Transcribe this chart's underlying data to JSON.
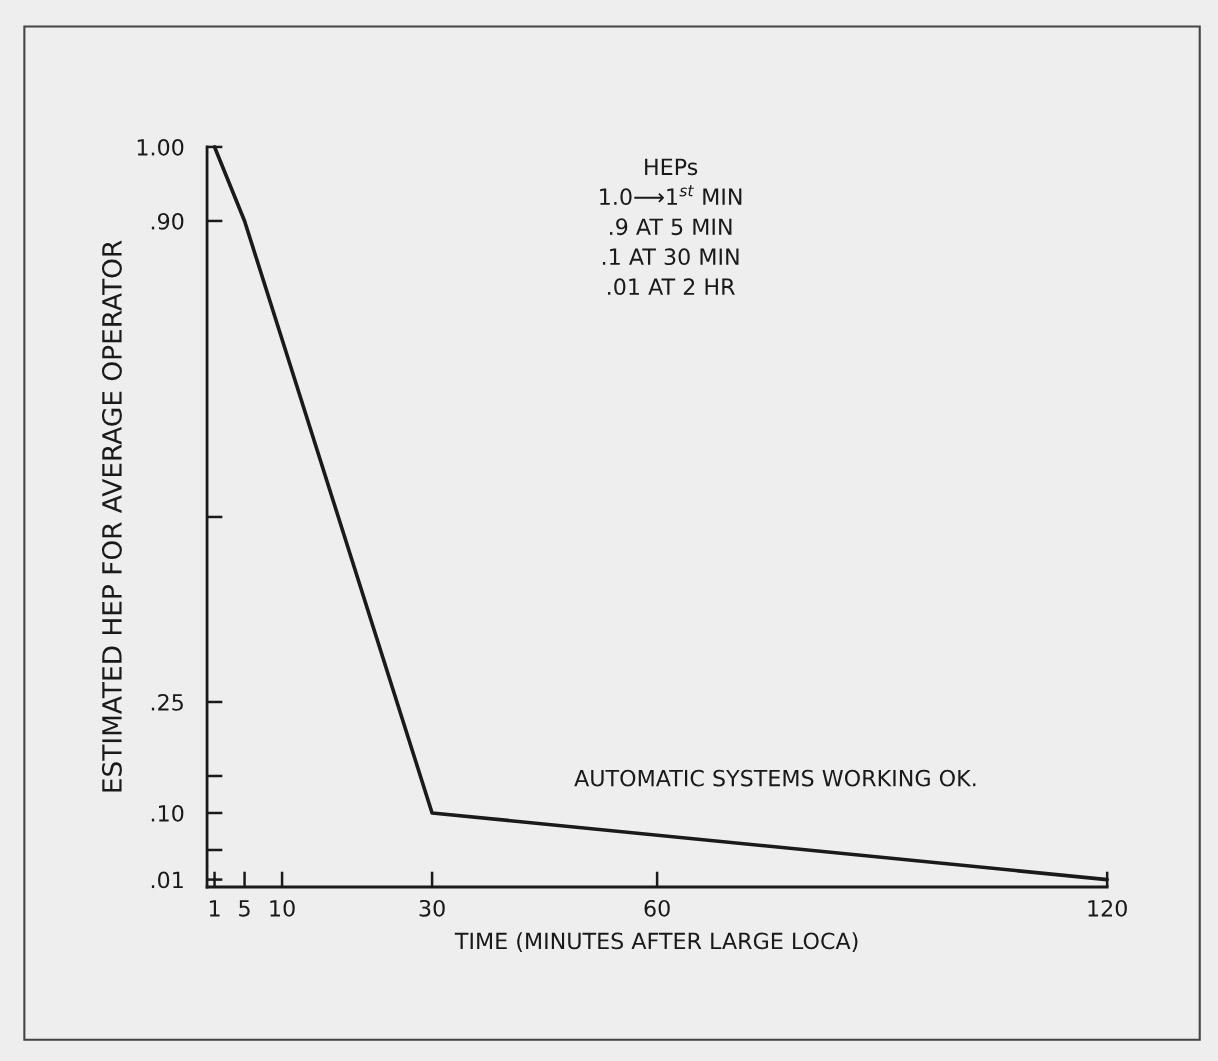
{
  "chart_data": {
    "type": "line",
    "xlabel": "TIME (MINUTES AFTER LARGE LOCA)",
    "ylabel": "ESTIMATED HEP FOR AVERAGE OPERATOR",
    "x": [
      1,
      5,
      30,
      120
    ],
    "values": [
      1.0,
      0.9,
      0.1,
      0.01
    ],
    "color": "#1a1a1a",
    "xlim": [
      0,
      120
    ],
    "xticks": [
      1,
      5,
      10,
      30,
      60,
      120
    ],
    "ylim": [
      0,
      1.0
    ],
    "yticks": [
      {
        "value": 1.0,
        "label": "1.00"
      },
      {
        "value": 0.9,
        "label": ".90"
      },
      {
        "value": 0.5,
        "label": null
      },
      {
        "value": 0.25,
        "label": ".25"
      },
      {
        "value": 0.15,
        "label": null
      },
      {
        "value": 0.1,
        "label": ".10"
      },
      {
        "value": 0.05,
        "label": null
      },
      {
        "value": 0.01,
        "label": ".01"
      }
    ],
    "annotations": [
      "HEPs\n1.0⟶1$^{st}$ MIN\n.9 AT 5 MIN\n.1 AT 30 MIN\n.01 AT 2 HR",
      "AUTOMATIC SYSTEMS WORKING OK."
    ]
  }
}
